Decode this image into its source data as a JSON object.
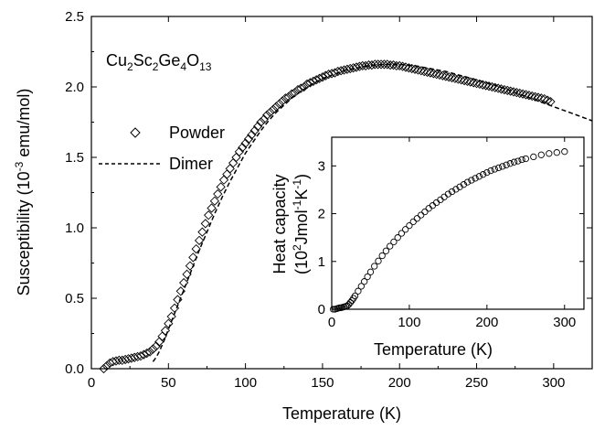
{
  "chart_data": [
    {
      "type": "scatter",
      "xlabel": "Temperature (K)",
      "ylabel": "Susceptibility (10^-3 emu/mol)",
      "ylabel_parts": {
        "pre": "Susceptibility (10",
        "sup": "-3",
        "post": " emu/mol)"
      },
      "xlim": [
        0,
        325
      ],
      "ylim": [
        0,
        2.5
      ],
      "xticks": [
        0,
        50,
        100,
        150,
        200,
        250,
        300
      ],
      "yticks": [
        0.0,
        0.5,
        1.0,
        1.5,
        2.0,
        2.5
      ],
      "ytick_labels": [
        "0.0",
        "0.5",
        "1.0",
        "1.5",
        "2.0",
        "2.5"
      ],
      "grid": false,
      "annotation": "Cu2Sc2Ge4O13",
      "legend_placement": "upper-left",
      "series": [
        {
          "name": "Powder",
          "marker": "diamond-open",
          "x": [
            8,
            10,
            12,
            14,
            16,
            18,
            20,
            22,
            24,
            26,
            28,
            30,
            32,
            34,
            36,
            38,
            40,
            42,
            44,
            46,
            48,
            50,
            52,
            54,
            56,
            58,
            60,
            62,
            64,
            66,
            68,
            70,
            72,
            74,
            76,
            78,
            80,
            82,
            84,
            86,
            88,
            90,
            92,
            94,
            96,
            98,
            100,
            102,
            104,
            106,
            108,
            110,
            112,
            114,
            116,
            118,
            120,
            122,
            124,
            126,
            128,
            130,
            132,
            134,
            136,
            138,
            140,
            142,
            144,
            146,
            148,
            150,
            152,
            154,
            156,
            158,
            160,
            162,
            164,
            166,
            168,
            170,
            172,
            174,
            176,
            178,
            180,
            182,
            184,
            186,
            188,
            190,
            192,
            194,
            196,
            198,
            200,
            202,
            204,
            206,
            208,
            210,
            212,
            214,
            216,
            218,
            220,
            222,
            224,
            226,
            228,
            230,
            232,
            234,
            236,
            238,
            240,
            242,
            244,
            246,
            248,
            250,
            252,
            254,
            256,
            258,
            260,
            262,
            264,
            266,
            268,
            270,
            272,
            274,
            276,
            278,
            280,
            282,
            284,
            286,
            288,
            290,
            292,
            294,
            296,
            298
          ],
          "y": [
            0.0,
            0.02,
            0.04,
            0.05,
            0.055,
            0.06,
            0.06,
            0.065,
            0.07,
            0.075,
            0.08,
            0.085,
            0.09,
            0.1,
            0.11,
            0.12,
            0.14,
            0.16,
            0.19,
            0.23,
            0.27,
            0.32,
            0.37,
            0.43,
            0.49,
            0.55,
            0.61,
            0.67,
            0.73,
            0.79,
            0.85,
            0.91,
            0.97,
            1.03,
            1.09,
            1.14,
            1.19,
            1.24,
            1.29,
            1.34,
            1.38,
            1.42,
            1.46,
            1.5,
            1.54,
            1.57,
            1.6,
            1.63,
            1.66,
            1.69,
            1.72,
            1.75,
            1.77,
            1.8,
            1.82,
            1.84,
            1.86,
            1.88,
            1.9,
            1.92,
            1.93,
            1.95,
            1.96,
            1.98,
            1.99,
            2.0,
            2.02,
            2.03,
            2.04,
            2.05,
            2.06,
            2.07,
            2.08,
            2.09,
            2.095,
            2.1,
            2.11,
            2.115,
            2.12,
            2.125,
            2.13,
            2.135,
            2.14,
            2.145,
            2.15,
            2.15,
            2.155,
            2.155,
            2.16,
            2.16,
            2.16,
            2.16,
            2.16,
            2.155,
            2.155,
            2.15,
            2.15,
            2.145,
            2.14,
            2.135,
            2.13,
            2.125,
            2.12,
            2.115,
            2.11,
            2.105,
            2.1,
            2.095,
            2.09,
            2.085,
            2.08,
            2.075,
            2.07,
            2.065,
            2.06,
            2.055,
            2.05,
            2.045,
            2.04,
            2.035,
            2.03,
            2.025,
            2.02,
            2.015,
            2.01,
            2.005,
            2.0,
            1.995,
            1.99,
            1.985,
            1.98,
            1.975,
            1.97,
            1.965,
            1.96,
            1.955,
            1.95,
            1.945,
            1.94,
            1.935,
            1.93,
            1.925,
            1.92,
            1.915,
            1.905,
            1.895
          ]
        },
        {
          "name": "Dimer",
          "style": "dashed",
          "x": [
            40,
            42,
            44,
            46,
            48,
            50,
            55,
            60,
            65,
            70,
            75,
            80,
            85,
            90,
            95,
            100,
            105,
            110,
            115,
            120,
            125,
            130,
            135,
            140,
            145,
            150,
            155,
            160,
            165,
            170,
            175,
            180,
            185,
            190,
            195,
            200,
            210,
            220,
            230,
            240,
            250,
            260,
            270,
            280,
            290,
            300,
            310,
            320,
            325
          ],
          "y": [
            0.05,
            0.08,
            0.12,
            0.17,
            0.22,
            0.28,
            0.42,
            0.56,
            0.7,
            0.84,
            0.97,
            1.1,
            1.22,
            1.33,
            1.43,
            1.53,
            1.61,
            1.69,
            1.76,
            1.82,
            1.87,
            1.92,
            1.96,
            2.0,
            2.03,
            2.06,
            2.08,
            2.1,
            2.12,
            2.13,
            2.14,
            2.15,
            2.155,
            2.16,
            2.16,
            2.16,
            2.15,
            2.13,
            2.11,
            2.08,
            2.05,
            2.02,
            1.98,
            1.94,
            1.9,
            1.86,
            1.82,
            1.78,
            1.76
          ]
        }
      ]
    },
    {
      "type": "scatter",
      "inset": true,
      "xlabel": "Temperature (K)",
      "ylabel_line1": "Heat capacity",
      "ylabel_line2_parts": {
        "pre": "(10",
        "sup1": "2",
        "mid": "Jmol",
        "sup2": "-1",
        "mid2": "K",
        "sup3": "-1",
        "post": ")"
      },
      "xlim": [
        0,
        325
      ],
      "ylim": [
        0,
        3.6
      ],
      "xticks": [
        0,
        100,
        200,
        300
      ],
      "yticks": [
        0,
        1,
        2,
        3
      ],
      "series": [
        {
          "name": "",
          "marker": "circle-open",
          "x": [
            2,
            4,
            6,
            8,
            10,
            12,
            14,
            16,
            18,
            20,
            22,
            24,
            26,
            28,
            30,
            34,
            38,
            42,
            46,
            50,
            55,
            60,
            65,
            70,
            75,
            80,
            85,
            90,
            95,
            100,
            105,
            110,
            115,
            120,
            125,
            130,
            135,
            140,
            145,
            150,
            155,
            160,
            165,
            170,
            175,
            180,
            185,
            190,
            195,
            200,
            205,
            210,
            215,
            220,
            225,
            230,
            235,
            240,
            245,
            250,
            260,
            270,
            280,
            290,
            300
          ],
          "y": [
            0.0,
            0.0,
            0.01,
            0.02,
            0.03,
            0.03,
            0.04,
            0.05,
            0.06,
            0.07,
            0.1,
            0.14,
            0.18,
            0.23,
            0.28,
            0.38,
            0.48,
            0.58,
            0.68,
            0.78,
            0.9,
            1.01,
            1.12,
            1.22,
            1.32,
            1.41,
            1.5,
            1.59,
            1.67,
            1.75,
            1.83,
            1.9,
            1.97,
            2.04,
            2.11,
            2.17,
            2.23,
            2.29,
            2.35,
            2.41,
            2.46,
            2.51,
            2.56,
            2.61,
            2.66,
            2.7,
            2.74,
            2.78,
            2.82,
            2.86,
            2.9,
            2.93,
            2.96,
            2.99,
            3.02,
            3.05,
            3.08,
            3.1,
            3.13,
            3.15,
            3.19,
            3.23,
            3.26,
            3.28,
            3.3
          ]
        }
      ]
    }
  ],
  "legend": {
    "powder_label": "Powder",
    "dimer_label": "Dimer"
  },
  "compound": {
    "base": [
      "Cu",
      "Sc",
      "Ge",
      "O"
    ],
    "subs": [
      "2",
      "2",
      "4",
      "13"
    ]
  }
}
